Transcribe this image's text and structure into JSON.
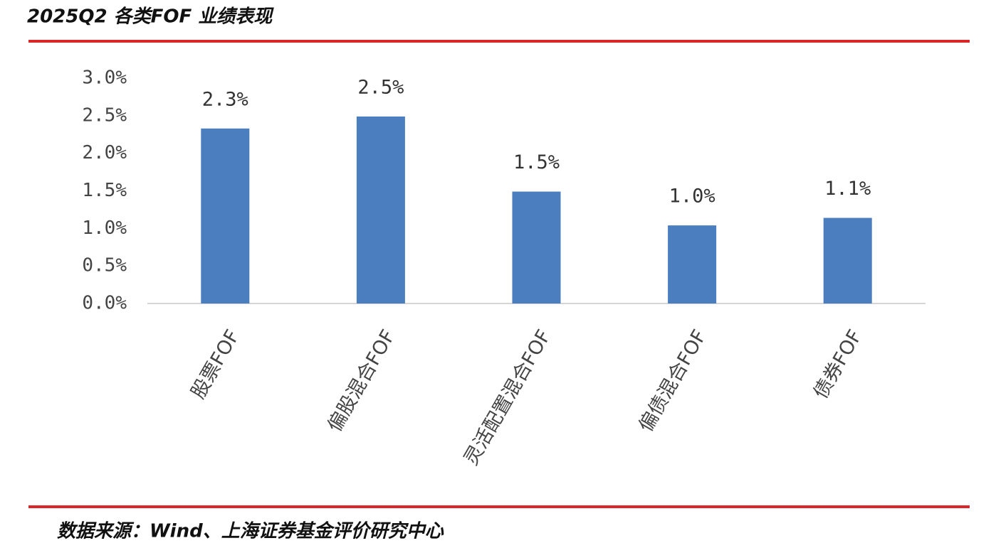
{
  "chart_data": {
    "type": "bar",
    "title": "2025Q2 各类FOF 业绩表现",
    "source": "数据来源：Wind、上海证券基金评价研究中心",
    "categories": [
      "股票FOF",
      "偏股混合FOF",
      "灵活配置混合FOF",
      "偏债混合FOF",
      "债券FOF"
    ],
    "values": [
      2.33,
      2.49,
      1.49,
      1.04,
      1.14
    ],
    "value_labels": [
      "2.3%",
      "2.5%",
      "1.5%",
      "1.0%",
      "1.1%"
    ],
    "color": "#4a7ebf",
    "ylim": [
      0,
      3
    ],
    "yticks": [
      {
        "value": 0,
        "label": "0.0%"
      },
      {
        "value": 0.5,
        "label": "0.5%"
      },
      {
        "value": 1,
        "label": "1.0%"
      },
      {
        "value": 1.5,
        "label": "1.5%"
      },
      {
        "value": 2,
        "label": "2.0%"
      },
      {
        "value": 2.5,
        "label": "2.5%"
      },
      {
        "value": 3,
        "label": "3.0%"
      }
    ],
    "grid": false
  }
}
